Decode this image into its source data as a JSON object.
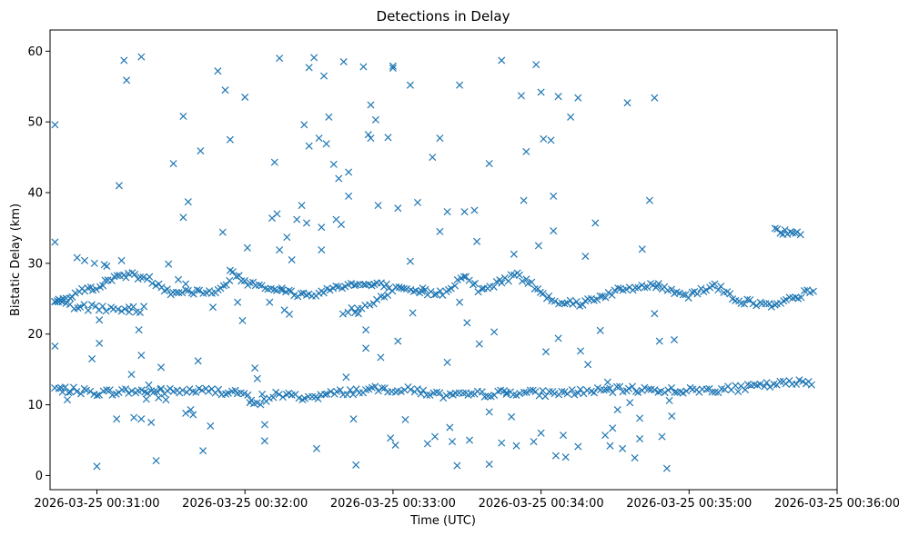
{
  "chart_data": {
    "type": "scatter",
    "title": "Detections in Delay",
    "xlabel": "Time (UTC)",
    "ylabel": "Bistatic Delay (km)",
    "marker": "x",
    "color": "#1f77b4",
    "grid": false,
    "x_unit": "seconds since 2026-03-25 00:30:00",
    "xlim": [
      41,
      360
    ],
    "ylim": [
      -2,
      63
    ],
    "xticks": [
      60,
      120,
      180,
      240,
      300,
      360
    ],
    "xtick_labels": [
      "2026-03-25 00:31:00",
      "2026-03-25 00:32:00",
      "2026-03-25 00:33:00",
      "2026-03-25 00:34:00",
      "2026-03-25 00:35:00",
      "2026-03-25 00:36:00"
    ],
    "yticks": [
      0,
      10,
      20,
      30,
      40,
      50,
      60
    ],
    "ytick_labels": [
      "0",
      "10",
      "20",
      "30",
      "40",
      "50",
      "60"
    ],
    "bands": [
      {
        "name": "lower-track",
        "x_start": 43,
        "x_end": 351,
        "step": 1.3,
        "y_knots": [
          [
            43,
            12.3
          ],
          [
            60,
            11.7
          ],
          [
            72,
            11.9
          ],
          [
            90,
            11.9
          ],
          [
            100,
            12.0
          ],
          [
            110,
            11.9
          ],
          [
            118,
            11.8
          ],
          [
            125,
            9.9
          ],
          [
            132,
            11.5
          ],
          [
            145,
            11.0
          ],
          [
            160,
            11.8
          ],
          [
            175,
            12.2
          ],
          [
            180,
            12.2
          ],
          [
            190,
            12.0
          ],
          [
            200,
            11.3
          ],
          [
            210,
            11.3
          ],
          [
            215,
            11.5
          ],
          [
            230,
            11.8
          ],
          [
            240,
            11.6
          ],
          [
            255,
            11.8
          ],
          [
            275,
            12.2
          ],
          [
            300,
            12.0
          ],
          [
            320,
            12.3
          ],
          [
            335,
            12.9
          ],
          [
            351,
            13.3
          ]
        ]
      },
      {
        "name": "upper-track",
        "x_start": 43,
        "x_end": 351,
        "step": 1.2,
        "y_knots": [
          [
            43,
            24.6
          ],
          [
            55,
            26.2
          ],
          [
            62,
            27.0
          ],
          [
            70,
            28.5
          ],
          [
            80,
            28.0
          ],
          [
            90,
            26.0
          ],
          [
            110,
            26.0
          ],
          [
            115,
            28.6
          ],
          [
            120,
            27.4
          ],
          [
            125,
            27.2
          ],
          [
            135,
            26.0
          ],
          [
            145,
            25.5
          ],
          [
            150,
            25.8
          ],
          [
            160,
            27.0
          ],
          [
            175,
            26.9
          ],
          [
            185,
            26.0
          ],
          [
            200,
            25.8
          ],
          [
            210,
            28.5
          ],
          [
            215,
            26.0
          ],
          [
            230,
            28.5
          ],
          [
            245,
            24.8
          ],
          [
            255,
            24.3
          ],
          [
            270,
            26.0
          ],
          [
            285,
            27.0
          ],
          [
            300,
            25.5
          ],
          [
            310,
            27.0
          ],
          [
            320,
            24.8
          ],
          [
            335,
            23.9
          ],
          [
            345,
            25.5
          ],
          [
            351,
            26.3
          ]
        ]
      },
      {
        "name": "secondary-track",
        "x_start": 43,
        "x_end": 80,
        "step": 1.5,
        "y_knots": [
          [
            43,
            24.5
          ],
          [
            50,
            24.0
          ],
          [
            55,
            23.8
          ],
          [
            63,
            23.6
          ],
          [
            70,
            23.5
          ],
          [
            80,
            23.5
          ]
        ]
      },
      {
        "name": "rising-track",
        "x_start": 160,
        "x_end": 178,
        "step": 1.5,
        "y_knots": [
          [
            160,
            23.0
          ],
          [
            170,
            24.0
          ],
          [
            178,
            25.5
          ]
        ]
      },
      {
        "name": "late-track",
        "x_start": 335,
        "x_end": 345,
        "step": 1.0,
        "y_knots": [
          [
            335,
            34.5
          ],
          [
            345,
            34.5
          ]
        ]
      }
    ],
    "band_jitter": 0.45,
    "noise_points": [
      [
        43,
        49.6
      ],
      [
        43,
        33.0
      ],
      [
        43,
        18.3
      ],
      [
        44,
        24.7
      ],
      [
        46,
        11.8
      ],
      [
        48,
        10.7
      ],
      [
        52,
        30.8
      ],
      [
        55,
        30.4
      ],
      [
        58,
        16.5
      ],
      [
        59,
        30.0
      ],
      [
        60,
        1.3
      ],
      [
        61,
        22.0
      ],
      [
        61,
        18.7
      ],
      [
        63,
        29.8
      ],
      [
        64,
        29.6
      ],
      [
        68,
        8.0
      ],
      [
        69,
        41.0
      ],
      [
        70,
        30.4
      ],
      [
        71,
        58.7
      ],
      [
        72,
        55.9
      ],
      [
        73,
        23.8
      ],
      [
        74,
        14.3
      ],
      [
        75,
        8.2
      ],
      [
        77,
        20.6
      ],
      [
        78,
        59.2
      ],
      [
        78,
        17.0
      ],
      [
        78,
        8.0
      ],
      [
        80,
        10.8
      ],
      [
        81,
        12.8
      ],
      [
        82,
        7.5
      ],
      [
        84,
        2.1
      ],
      [
        85,
        11.0
      ],
      [
        86,
        12.3
      ],
      [
        86,
        15.3
      ],
      [
        88,
        10.7
      ],
      [
        89,
        29.9
      ],
      [
        91,
        44.1
      ],
      [
        93,
        27.7
      ],
      [
        95,
        50.8
      ],
      [
        95,
        36.5
      ],
      [
        96,
        27.1
      ],
      [
        96,
        8.8
      ],
      [
        97,
        38.7
      ],
      [
        98,
        9.3
      ],
      [
        99,
        8.6
      ],
      [
        101,
        16.2
      ],
      [
        102,
        45.9
      ],
      [
        103,
        3.5
      ],
      [
        106,
        7.0
      ],
      [
        107,
        23.8
      ],
      [
        109,
        57.2
      ],
      [
        111,
        34.4
      ],
      [
        112,
        54.5
      ],
      [
        114,
        47.5
      ],
      [
        114,
        29.0
      ],
      [
        117,
        24.5
      ],
      [
        119,
        21.9
      ],
      [
        120,
        53.5
      ],
      [
        121,
        32.2
      ],
      [
        122,
        10.3
      ],
      [
        124,
        15.2
      ],
      [
        125,
        13.7
      ],
      [
        127,
        11.5
      ],
      [
        128,
        4.9
      ],
      [
        128,
        7.2
      ],
      [
        130,
        24.5
      ],
      [
        131,
        36.4
      ],
      [
        132,
        44.3
      ],
      [
        133,
        37.0
      ],
      [
        134,
        59.0
      ],
      [
        134,
        31.9
      ],
      [
        135,
        26.5
      ],
      [
        136,
        23.4
      ],
      [
        137,
        33.7
      ],
      [
        138,
        22.8
      ],
      [
        139,
        30.5
      ],
      [
        141,
        36.2
      ],
      [
        143,
        38.2
      ],
      [
        144,
        49.6
      ],
      [
        145,
        35.7
      ],
      [
        146,
        46.6
      ],
      [
        146,
        57.7
      ],
      [
        148,
        59.1
      ],
      [
        149,
        3.8
      ],
      [
        150,
        47.7
      ],
      [
        151,
        31.9
      ],
      [
        151,
        35.1
      ],
      [
        152,
        56.5
      ],
      [
        153,
        46.9
      ],
      [
        154,
        50.7
      ],
      [
        156,
        44.0
      ],
      [
        157,
        36.2
      ],
      [
        158,
        42.0
      ],
      [
        159,
        35.5
      ],
      [
        160,
        58.5
      ],
      [
        161,
        13.9
      ],
      [
        162,
        39.5
      ],
      [
        162,
        42.9
      ],
      [
        164,
        8.0
      ],
      [
        165,
        1.5
      ],
      [
        166,
        22.9
      ],
      [
        168,
        57.8
      ],
      [
        169,
        20.6
      ],
      [
        169,
        18.0
      ],
      [
        170,
        48.2
      ],
      [
        171,
        52.4
      ],
      [
        171,
        47.7
      ],
      [
        173,
        50.3
      ],
      [
        174,
        38.2
      ],
      [
        175,
        16.7
      ],
      [
        178,
        47.8
      ],
      [
        179,
        5.3
      ],
      [
        180,
        57.6
      ],
      [
        180,
        57.9
      ],
      [
        181,
        4.3
      ],
      [
        182,
        37.8
      ],
      [
        182,
        19.0
      ],
      [
        185,
        7.9
      ],
      [
        187,
        55.2
      ],
      [
        187,
        30.3
      ],
      [
        188,
        23.0
      ],
      [
        190,
        38.6
      ],
      [
        192,
        26.5
      ],
      [
        194,
        4.5
      ],
      [
        196,
        45.0
      ],
      [
        197,
        5.5
      ],
      [
        199,
        47.7
      ],
      [
        199,
        34.5
      ],
      [
        202,
        37.3
      ],
      [
        202,
        16.0
      ],
      [
        203,
        6.8
      ],
      [
        204,
        4.8
      ],
      [
        206,
        1.4
      ],
      [
        207,
        55.2
      ],
      [
        207,
        24.5
      ],
      [
        209,
        37.3
      ],
      [
        210,
        21.6
      ],
      [
        211,
        5.0
      ],
      [
        213,
        37.5
      ],
      [
        214,
        33.1
      ],
      [
        215,
        18.6
      ],
      [
        219,
        1.6
      ],
      [
        219,
        44.1
      ],
      [
        219,
        9.0
      ],
      [
        221,
        20.3
      ],
      [
        224,
        58.7
      ],
      [
        224,
        4.6
      ],
      [
        226,
        11.5
      ],
      [
        228,
        8.3
      ],
      [
        229,
        31.3
      ],
      [
        230,
        4.2
      ],
      [
        232,
        53.7
      ],
      [
        233,
        38.9
      ],
      [
        234,
        45.8
      ],
      [
        237,
        4.8
      ],
      [
        238,
        58.1
      ],
      [
        239,
        32.5
      ],
      [
        240,
        54.2
      ],
      [
        240,
        6.0
      ],
      [
        241,
        47.6
      ],
      [
        242,
        17.5
      ],
      [
        244,
        47.4
      ],
      [
        245,
        39.5
      ],
      [
        245,
        34.6
      ],
      [
        246,
        2.8
      ],
      [
        247,
        19.4
      ],
      [
        247,
        53.6
      ],
      [
        249,
        5.7
      ],
      [
        250,
        2.6
      ],
      [
        252,
        50.7
      ],
      [
        255,
        53.4
      ],
      [
        255,
        4.1
      ],
      [
        256,
        17.6
      ],
      [
        258,
        31.0
      ],
      [
        259,
        15.7
      ],
      [
        262,
        35.7
      ],
      [
        264,
        20.5
      ],
      [
        266,
        5.7
      ],
      [
        267,
        13.2
      ],
      [
        268,
        4.2
      ],
      [
        269,
        6.7
      ],
      [
        271,
        9.3
      ],
      [
        273,
        3.8
      ],
      [
        275,
        52.7
      ],
      [
        276,
        10.3
      ],
      [
        278,
        2.5
      ],
      [
        280,
        8.1
      ],
      [
        280,
        5.2
      ],
      [
        281,
        32.0
      ],
      [
        284,
        38.9
      ],
      [
        286,
        53.4
      ],
      [
        286,
        22.9
      ],
      [
        287,
        26.8
      ],
      [
        288,
        19.0
      ],
      [
        289,
        5.5
      ],
      [
        291,
        1.0
      ],
      [
        292,
        10.6
      ],
      [
        293,
        8.4
      ],
      [
        294,
        19.2
      ]
    ]
  }
}
